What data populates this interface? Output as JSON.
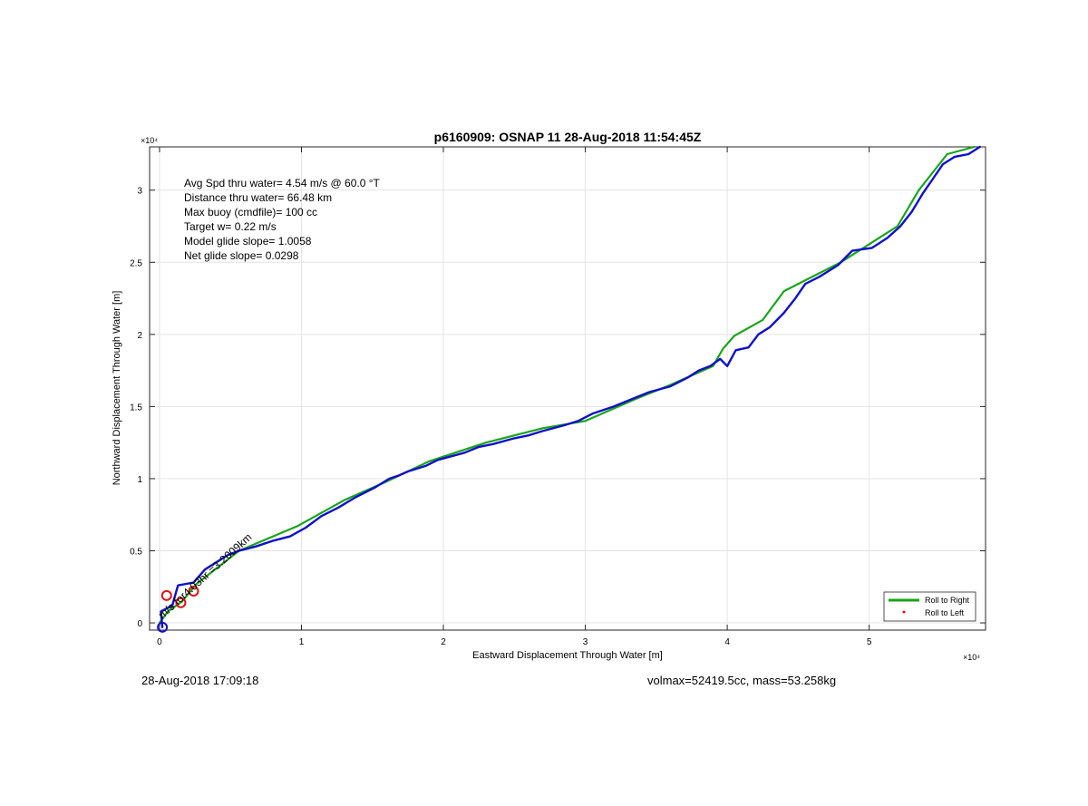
{
  "figure": {
    "footer_left": "28-Aug-2018 17:09:18",
    "footer_right": "volmax=52419.5cc, mass=53.258kg"
  },
  "chart_data": {
    "type": "line",
    "title": "p6160909: OSNAP 11 28-Aug-2018 11:54:45Z",
    "xlabel": "Eastward Displacement Through Water [m]",
    "ylabel": "Northward Displacement Through Water [m]",
    "x_exponent": "×10⁴",
    "y_exponent": "×10⁴",
    "xlim": [
      -700,
      58200
    ],
    "ylim": [
      -500,
      33000
    ],
    "x_ticks": [
      0,
      10000,
      20000,
      30000,
      40000,
      50000
    ],
    "x_tick_labels": [
      "0",
      "1",
      "2",
      "3",
      "4",
      "5"
    ],
    "y_ticks": [
      0,
      5000,
      10000,
      15000,
      20000,
      25000,
      30000
    ],
    "y_tick_labels": [
      "0",
      "0.5",
      "1",
      "1.5",
      "2",
      "2.5",
      "3"
    ],
    "grid": true,
    "legend_position": "bottom-right",
    "info_lines": [
      "Avg Spd thru water=  4.54 m/s @  60.0 °T",
      "Distance thru water= 66.48 km",
      "Max buoy (cmdfile)= 100 cc",
      "Target w= 0.22 m/s",
      "Model glide slope= 1.0058",
      "Net glide slope= 0.0298"
    ],
    "annotation": {
      "text": "m/s for4.03hr =3.2009km",
      "x": 200,
      "y": 0,
      "angle_deg": -42
    },
    "series": [
      {
        "name": "Roll to Right",
        "color": "#19a419",
        "style": "line",
        "points": [
          [
            0,
            0
          ],
          [
            600,
            800
          ],
          [
            1600,
            1500
          ],
          [
            2600,
            2700
          ],
          [
            5600,
            5000
          ],
          [
            9700,
            6700
          ],
          [
            13000,
            8500
          ],
          [
            16000,
            9800
          ],
          [
            19000,
            11200
          ],
          [
            23000,
            12500
          ],
          [
            27000,
            13500
          ],
          [
            30000,
            14000
          ],
          [
            33500,
            15500
          ],
          [
            36000,
            16500
          ],
          [
            39000,
            17800
          ],
          [
            39700,
            19000
          ],
          [
            40500,
            19900
          ],
          [
            42500,
            21000
          ],
          [
            44000,
            23000
          ],
          [
            48000,
            25000
          ],
          [
            52000,
            27500
          ],
          [
            53500,
            30000
          ],
          [
            55500,
            32500
          ],
          [
            57400,
            33000
          ]
        ]
      },
      {
        "name": "Roll to Left",
        "color": "#e01010",
        "style": "marker",
        "points": [
          [
            500,
            1900
          ],
          [
            1500,
            1400
          ],
          [
            2400,
            2200
          ]
        ]
      },
      {
        "name": "",
        "color": "#1010c8",
        "style": "line",
        "points": [
          [
            200,
            -300
          ],
          [
            100,
            800
          ],
          [
            900,
            1200
          ],
          [
            1300,
            2600
          ],
          [
            2400,
            2800
          ],
          [
            3200,
            3700
          ],
          [
            4800,
            4700
          ],
          [
            5600,
            5000
          ],
          [
            6800,
            5300
          ],
          [
            8000,
            5700
          ],
          [
            9200,
            6000
          ],
          [
            10300,
            6600
          ],
          [
            11400,
            7400
          ],
          [
            12600,
            8000
          ],
          [
            13800,
            8700
          ],
          [
            15200,
            9400
          ],
          [
            16200,
            10000
          ],
          [
            16800,
            10200
          ],
          [
            17500,
            10500
          ],
          [
            18800,
            10900
          ],
          [
            19600,
            11300
          ],
          [
            21500,
            11800
          ],
          [
            22500,
            12200
          ],
          [
            23500,
            12400
          ],
          [
            25000,
            12800
          ],
          [
            26000,
            13000
          ],
          [
            27000,
            13300
          ],
          [
            28500,
            13700
          ],
          [
            29500,
            14000
          ],
          [
            30500,
            14500
          ],
          [
            32000,
            15000
          ],
          [
            33000,
            15400
          ],
          [
            34500,
            16000
          ],
          [
            36000,
            16400
          ],
          [
            37200,
            17000
          ],
          [
            38000,
            17500
          ],
          [
            38800,
            17800
          ],
          [
            39500,
            18300
          ],
          [
            40000,
            17800
          ],
          [
            40600,
            18900
          ],
          [
            41500,
            19100
          ],
          [
            42200,
            20000
          ],
          [
            43000,
            20500
          ],
          [
            44000,
            21500
          ],
          [
            44800,
            22500
          ],
          [
            45500,
            23500
          ],
          [
            46500,
            24000
          ],
          [
            47800,
            24800
          ],
          [
            48800,
            25800
          ],
          [
            50200,
            26000
          ],
          [
            51300,
            26700
          ],
          [
            52200,
            27500
          ],
          [
            53000,
            28500
          ],
          [
            53800,
            29800
          ],
          [
            54500,
            30800
          ],
          [
            55200,
            31800
          ],
          [
            56000,
            32300
          ],
          [
            57000,
            32500
          ],
          [
            57800,
            33000
          ]
        ]
      }
    ]
  }
}
